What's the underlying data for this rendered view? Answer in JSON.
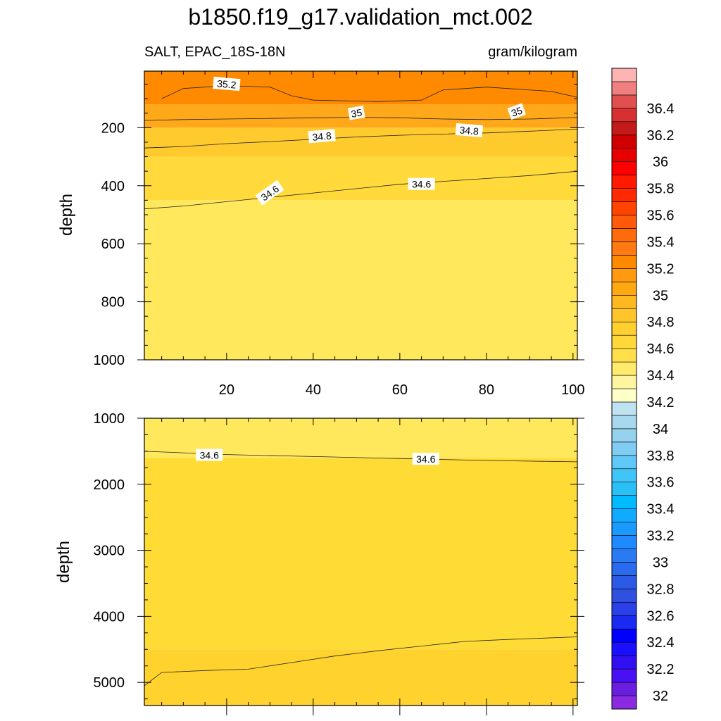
{
  "title": "b1850.f19_g17.validation_mct.002",
  "chart_data": [
    {
      "type": "heatmap",
      "panel": "upper",
      "variable_label": "SALT, EPAC_18S-18N",
      "units_label": "gram/kilogram",
      "xlabel": "",
      "ylabel": "depth",
      "xlim": [
        1,
        101
      ],
      "ylim": [
        1000,
        5
      ],
      "xticks": [
        20,
        40,
        60,
        80,
        100
      ],
      "yticks": [
        200,
        400,
        600,
        800,
        1000
      ],
      "grid": false,
      "contour_levels_shown": [
        35.2,
        35,
        34.8,
        34.6
      ],
      "contours": [
        {
          "level": 34.6,
          "line": [
            [
              1,
              480
            ],
            [
              10,
              470
            ],
            [
              20,
              455
            ],
            [
              30,
              440
            ],
            [
              40,
              425
            ],
            [
              50,
              410
            ],
            [
              60,
              395
            ],
            [
              70,
              385
            ],
            [
              80,
              375
            ],
            [
              90,
              365
            ],
            [
              101,
              350
            ]
          ],
          "labels": [
            {
              "x": 30,
              "y": 425,
              "text": "34.6",
              "rot": -35
            },
            {
              "x": 65,
              "y": 395,
              "text": "34.6",
              "rot": 0
            }
          ]
        },
        {
          "level": 34.8,
          "line": [
            [
              1,
              270
            ],
            [
              10,
              265
            ],
            [
              20,
              255
            ],
            [
              30,
              248
            ],
            [
              40,
              240
            ],
            [
              50,
              232
            ],
            [
              60,
              226
            ],
            [
              70,
              222
            ],
            [
              80,
              218
            ],
            [
              90,
              212
            ],
            [
              101,
              205
            ]
          ],
          "labels": [
            {
              "x": 42,
              "y": 230,
              "text": "34.8",
              "rot": -5
            },
            {
              "x": 76,
              "y": 210,
              "text": "34.8",
              "rot": 5
            }
          ]
        },
        {
          "level": 35,
          "line": [
            [
              1,
              175
            ],
            [
              10,
              172
            ],
            [
              20,
              170
            ],
            [
              30,
              168
            ],
            [
              40,
              166
            ],
            [
              50,
              164
            ],
            [
              60,
              166
            ],
            [
              70,
              170
            ],
            [
              80,
              172
            ],
            [
              90,
              170
            ],
            [
              101,
              165
            ]
          ],
          "labels": [
            {
              "x": 50,
              "y": 150,
              "text": "35",
              "rot": -10
            },
            {
              "x": 87,
              "y": 145,
              "text": "35",
              "rot": -20
            }
          ]
        },
        {
          "level": 35.2,
          "line": [
            [
              5,
              100
            ],
            [
              10,
              65
            ],
            [
              20,
              55
            ],
            [
              30,
              60
            ],
            [
              35,
              90
            ],
            [
              40,
              105
            ],
            [
              55,
              110
            ],
            [
              65,
              105
            ],
            [
              70,
              70
            ],
            [
              80,
              60
            ],
            [
              95,
              75
            ],
            [
              101,
              95
            ]
          ],
          "labels": [
            {
              "x": 20,
              "y": 50,
              "text": "35.2",
              "rot": 5
            }
          ]
        }
      ],
      "fill_bands": [
        {
          "depth_top": 5,
          "salinity": 35.2,
          "color": "#ff8a00"
        },
        {
          "depth_top": 120,
          "salinity": 35.0,
          "color": "#ffa81a"
        },
        {
          "depth_top": 200,
          "salinity": 34.8,
          "color": "#ffca2e"
        },
        {
          "depth_top": 300,
          "salinity": 34.6,
          "color": "#ffda3a"
        },
        {
          "depth_top": 450,
          "salinity": 34.5,
          "color": "#ffe85c"
        }
      ]
    },
    {
      "type": "heatmap",
      "panel": "lower",
      "xlabel": "",
      "ylabel": "depth",
      "xlim": [
        1,
        101
      ],
      "ylim": [
        5350,
        1000
      ],
      "yticks": [
        1000,
        2000,
        3000,
        4000,
        5000
      ],
      "grid": false,
      "contour_levels_shown": [
        34.6
      ],
      "contours": [
        {
          "level": 34.6,
          "line": [
            [
              1,
              1500
            ],
            [
              20,
              1550
            ],
            [
              40,
              1580
            ],
            [
              60,
              1610
            ],
            [
              80,
              1640
            ],
            [
              101,
              1660
            ]
          ],
          "labels": [
            {
              "x": 16,
              "y": 1560,
              "text": "34.6",
              "rot": 0
            },
            {
              "x": 66,
              "y": 1620,
              "text": "34.6",
              "rot": 0
            }
          ]
        },
        {
          "level": 34.7,
          "line": [
            [
              1,
              5050
            ],
            [
              5,
              4850
            ],
            [
              15,
              4820
            ],
            [
              25,
              4800
            ],
            [
              35,
              4700
            ],
            [
              45,
              4600
            ],
            [
              55,
              4520
            ],
            [
              65,
              4450
            ],
            [
              75,
              4380
            ],
            [
              85,
              4350
            ],
            [
              101,
              4310
            ]
          ],
          "labels": []
        }
      ],
      "fill_bands": [
        {
          "depth_top": 1000,
          "salinity": 34.5,
          "color": "#ffe85c"
        },
        {
          "depth_top": 1600,
          "salinity": 34.6,
          "color": "#ffdc35"
        },
        {
          "depth_top": 4500,
          "salinity": 34.7,
          "color": "#ffd22e"
        }
      ]
    }
  ],
  "colorbar": {
    "levels": [
      {
        "label": "",
        "color": "#8a2be2"
      },
      {
        "label": "32",
        "color": "#6a1fe0"
      },
      {
        "label": "",
        "color": "#4a10f5"
      },
      {
        "label": "32.2",
        "color": "#3010f0"
      },
      {
        "label": "",
        "color": "#1a10ff"
      },
      {
        "label": "32.4",
        "color": "#0000ff"
      },
      {
        "label": "",
        "color": "#1a2af0"
      },
      {
        "label": "32.6",
        "color": "#2a40e8"
      },
      {
        "label": "",
        "color": "#3050e0"
      },
      {
        "label": "32.8",
        "color": "#2a5ae6"
      },
      {
        "label": "",
        "color": "#2a6aee"
      },
      {
        "label": "33",
        "color": "#2a7af4"
      },
      {
        "label": "",
        "color": "#1f8aff"
      },
      {
        "label": "33.2",
        "color": "#1a9aff"
      },
      {
        "label": "",
        "color": "#10aaff"
      },
      {
        "label": "33.4",
        "color": "#00bbff"
      },
      {
        "label": "",
        "color": "#2ac0f5"
      },
      {
        "label": "33.6",
        "color": "#40c5f8"
      },
      {
        "label": "",
        "color": "#60c8f6"
      },
      {
        "label": "33.8",
        "color": "#80ccf2"
      },
      {
        "label": "",
        "color": "#94d2ee"
      },
      {
        "label": "34",
        "color": "#a8d8ee"
      },
      {
        "label": "",
        "color": "#bfe2f0"
      },
      {
        "label": "34.2",
        "color": "#ffffc8"
      },
      {
        "label": "",
        "color": "#fff5a0"
      },
      {
        "label": "34.4",
        "color": "#ffea6c"
      },
      {
        "label": "",
        "color": "#ffe04a"
      },
      {
        "label": "34.6",
        "color": "#ffd83a"
      },
      {
        "label": "",
        "color": "#ffd030"
      },
      {
        "label": "34.8",
        "color": "#ffc52a"
      },
      {
        "label": "",
        "color": "#ffb81e"
      },
      {
        "label": "35",
        "color": "#ffa812"
      },
      {
        "label": "",
        "color": "#ff9a10"
      },
      {
        "label": "35.2",
        "color": "#ff8a00"
      },
      {
        "label": "",
        "color": "#ff7a10"
      },
      {
        "label": "35.4",
        "color": "#ff6a0a"
      },
      {
        "label": "",
        "color": "#ff5a0a"
      },
      {
        "label": "35.6",
        "color": "#ff4400"
      },
      {
        "label": "",
        "color": "#ff2a00"
      },
      {
        "label": "35.8",
        "color": "#ff1a00"
      },
      {
        "label": "",
        "color": "#ff0000"
      },
      {
        "label": "36",
        "color": "#e60000"
      },
      {
        "label": "",
        "color": "#d10000"
      },
      {
        "label": "36.2",
        "color": "#c41a1a"
      },
      {
        "label": "",
        "color": "#d83030"
      },
      {
        "label": "36.4",
        "color": "#e05050"
      },
      {
        "label": "",
        "color": "#f08080"
      },
      {
        "label": "",
        "color": "#ffb4b4"
      }
    ]
  }
}
